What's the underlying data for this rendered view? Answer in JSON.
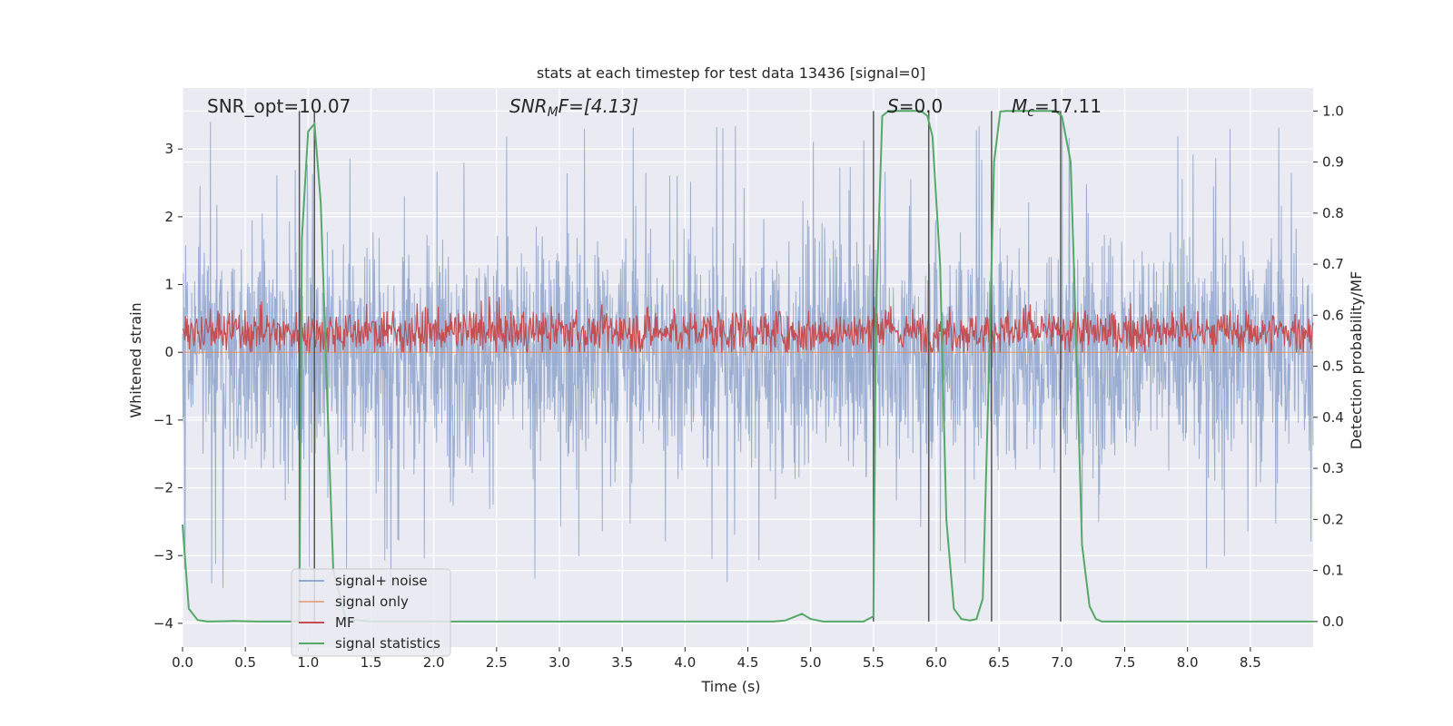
{
  "chart_data": {
    "type": "line",
    "title": "stats at each timestep for test data 13436 [signal=0]",
    "xlabel": "Time (s)",
    "ylabel": "Whitened strain",
    "y2label": "Detection probability/MF",
    "xlim": [
      0.0,
      9.0
    ],
    "ylim": [
      -4.35,
      3.9
    ],
    "y2lim": [
      -0.05,
      1.045
    ],
    "x_ticks": [
      0.0,
      0.5,
      1.0,
      1.5,
      2.0,
      2.5,
      3.0,
      3.5,
      4.0,
      4.5,
      5.0,
      5.5,
      6.0,
      6.5,
      7.0,
      7.5,
      8.0,
      8.5
    ],
    "x_tick_labels": [
      "0.0",
      "0.5",
      "1.0",
      "1.5",
      "2.0",
      "2.5",
      "3.0",
      "3.5",
      "4.0",
      "4.5",
      "5.0",
      "5.5",
      "6.0",
      "6.5",
      "7.0",
      "7.5",
      "8.0",
      "8.5"
    ],
    "y_ticks": [
      -4,
      -3,
      -2,
      -1,
      0,
      1,
      2,
      3
    ],
    "y_tick_labels": [
      "−4",
      "−3",
      "−2",
      "−1",
      "0",
      "1",
      "2",
      "3"
    ],
    "y2_ticks": [
      0.0,
      0.1,
      0.2,
      0.3,
      0.4,
      0.5,
      0.6,
      0.7,
      0.8,
      0.9,
      1.0
    ],
    "y2_tick_labels": [
      "0.0",
      "0.1",
      "0.2",
      "0.3",
      "0.4",
      "0.5",
      "0.6",
      "0.7",
      "0.8",
      "0.9",
      "1.0"
    ],
    "grid": true,
    "legend_position": "lower-left",
    "annotations": {
      "snr_opt": "SNR_opt=10.07",
      "snr_mf_main": "SNR",
      "snr_mf_sub": "M",
      "snr_mf_rest": "F=[4.13]",
      "s_main": "S",
      "s_rest": "=0.0",
      "mc_main": "M",
      "mc_sub": "c",
      "mc_rest": "=17.11"
    },
    "vertical_markers_s": [
      0.93,
      1.05,
      5.5,
      5.94,
      6.44,
      6.99
    ],
    "series": [
      {
        "name": "signal+ noise",
        "color": "#4c72b0",
        "axis": "left",
        "style": "dense noise, std ≈ 0.85, occasional spikes to ±3.5",
        "envelope_upper": 3.5,
        "envelope_lower": -3.7
      },
      {
        "name": "signal only",
        "color": "#dd8452",
        "axis": "left",
        "values_constant": 0.0
      },
      {
        "name": "MF",
        "color": "#c44e52",
        "axis": "left",
        "style": "noise band centered near 0.3, range 0 to 1.0"
      },
      {
        "name": "signal statistics",
        "color": "#55a868",
        "axis": "right",
        "x": [
          0.0,
          0.05,
          0.12,
          0.2,
          0.4,
          0.6,
          0.9,
          0.93,
          0.95,
          1.0,
          1.05,
          1.1,
          1.15,
          1.2,
          1.3,
          1.5,
          2.0,
          3.0,
          4.0,
          4.7,
          4.8,
          4.88,
          4.93,
          5.0,
          5.1,
          5.2,
          5.3,
          5.42,
          5.5,
          5.52,
          5.57,
          5.62,
          5.7,
          5.8,
          5.88,
          5.93,
          5.97,
          6.03,
          6.08,
          6.14,
          6.2,
          6.27,
          6.32,
          6.37,
          6.42,
          6.46,
          6.51,
          6.56,
          6.65,
          6.8,
          6.95,
          7.0,
          7.07,
          7.12,
          7.16,
          7.22,
          7.27,
          7.32,
          7.4,
          7.6,
          8.0,
          8.5,
          9.0
        ],
        "values": [
          0.19,
          0.025,
          0.003,
          0.0,
          0.001,
          0.0,
          0.0,
          0.0,
          0.75,
          0.96,
          0.975,
          0.82,
          0.45,
          0.1,
          0.005,
          0.0,
          0.0,
          0.0,
          0.0,
          0.0,
          0.002,
          0.01,
          0.015,
          0.005,
          0.0,
          0.0,
          0.0,
          0.0,
          0.01,
          0.6,
          0.99,
          1.0,
          1.0,
          1.0,
          1.0,
          0.99,
          0.95,
          0.7,
          0.2,
          0.025,
          0.005,
          0.002,
          0.005,
          0.045,
          0.5,
          0.9,
          0.999,
          1.0,
          1.0,
          1.0,
          1.0,
          0.99,
          0.9,
          0.5,
          0.15,
          0.03,
          0.005,
          0.0,
          0.0,
          0.0,
          0.0,
          0.0,
          0.0
        ]
      }
    ]
  }
}
